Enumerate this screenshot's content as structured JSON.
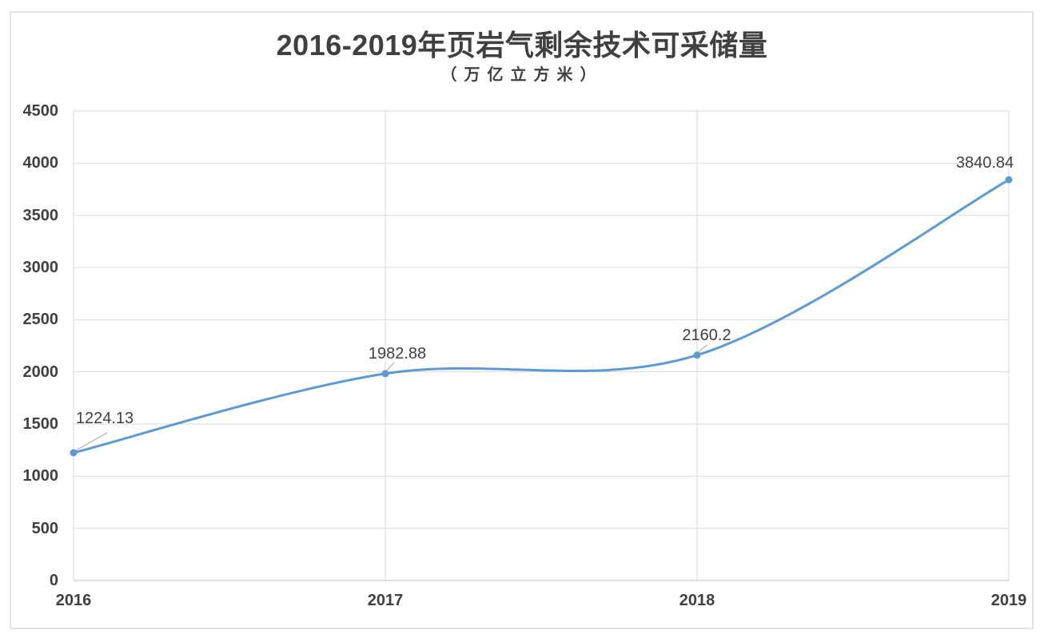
{
  "chart_data": {
    "type": "line",
    "title": "2016-2019年页岩气剩余技术可采储量",
    "subtitle": "（万亿立方米）",
    "categories": [
      "2016",
      "2017",
      "2018",
      "2019"
    ],
    "values": [
      1224.13,
      1982.88,
      2160.2,
      3840.84
    ],
    "data_labels": [
      "1224.13",
      "1982.88",
      "2160.2",
      "3840.84"
    ],
    "y_ticks": [
      0,
      500,
      1000,
      1500,
      2000,
      2500,
      3000,
      3500,
      4000,
      4500
    ],
    "ylim": [
      0,
      4500
    ],
    "grid": "horizontal gridlines every 500 plus vertical gridlines at each year",
    "legend": "none",
    "smooth_line": true,
    "colors": {
      "line": "#5b9bd5",
      "marker": "#5b9bd5",
      "gridline": "#d9d9d9",
      "axis_line": "#bfbfbf",
      "text": "#404040",
      "leader_line": "#a6a6a6",
      "frame_border": "#e2e2e2"
    }
  }
}
